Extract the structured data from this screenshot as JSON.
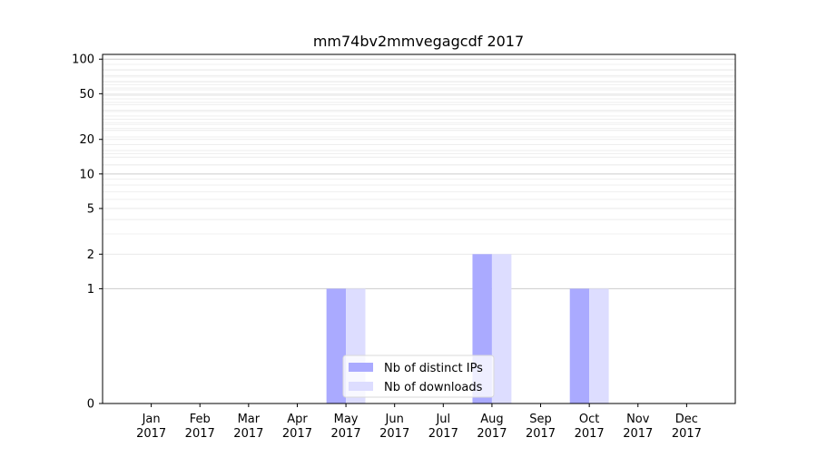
{
  "chart_data": {
    "type": "bar",
    "title": "mm74bv2mmvegagcdf 2017",
    "xlabel": "",
    "ylabel": "",
    "categories": [
      [
        "Jan",
        "2017"
      ],
      [
        "Feb",
        "2017"
      ],
      [
        "Mar",
        "2017"
      ],
      [
        "Apr",
        "2017"
      ],
      [
        "May",
        "2017"
      ],
      [
        "Jun",
        "2017"
      ],
      [
        "Jul",
        "2017"
      ],
      [
        "Aug",
        "2017"
      ],
      [
        "Sep",
        "2017"
      ],
      [
        "Oct",
        "2017"
      ],
      [
        "Nov",
        "2017"
      ],
      [
        "Dec",
        "2017"
      ]
    ],
    "series": [
      {
        "name": "Nb of distinct IPs",
        "color": "#aaaaff",
        "values": [
          0,
          0,
          0,
          0,
          1,
          0,
          0,
          2,
          0,
          1,
          0,
          0
        ]
      },
      {
        "name": "Nb of downloads",
        "color": "#ddddff",
        "values": [
          0,
          0,
          0,
          0,
          1,
          0,
          0,
          2,
          0,
          1,
          0,
          0
        ]
      }
    ],
    "y_scale": "symlog",
    "ylim": [
      0,
      110
    ],
    "yticks": [
      0,
      1,
      2,
      5,
      10,
      20,
      50,
      100
    ],
    "grid": true,
    "legend_position": "bottom-center"
  }
}
